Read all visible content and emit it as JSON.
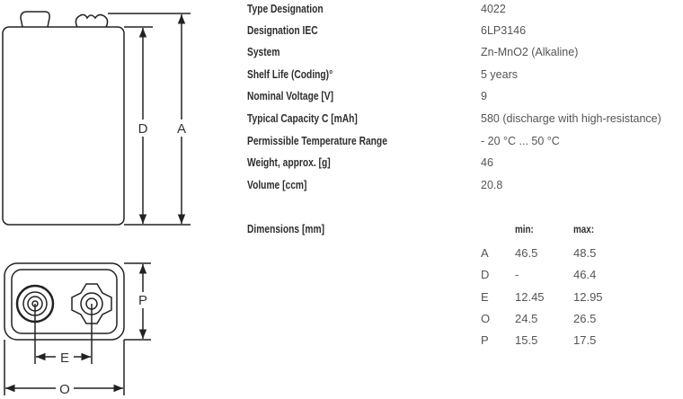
{
  "specs": [
    {
      "label": "Type Designation",
      "value": "4022"
    },
    {
      "label": "Designation IEC",
      "value": "6LP3146"
    },
    {
      "label": "System",
      "value": "Zn-MnO2 (Alkaline)"
    },
    {
      "label": "Shelf Life (Coding)°",
      "value": "5 years"
    },
    {
      "label": "Nominal Voltage [V]",
      "value": "9"
    },
    {
      "label": "Typical Capacity C [mAh]",
      "value": "580 (discharge with high-resistance)"
    },
    {
      "label": "Permissible Temperature Range",
      "value": "- 20 °C ... 50 °C"
    },
    {
      "label": "Weight, approx. [g]",
      "value": "46"
    },
    {
      "label": "Volume [ccm]",
      "value": "20.8"
    }
  ],
  "dimensions": {
    "title": "Dimensions [mm]",
    "min_header": "min:",
    "max_header": "max:",
    "rows": [
      {
        "key": "A",
        "min": "46.5",
        "max": "48.5"
      },
      {
        "key": "D",
        "min": "-",
        "max": "46.4"
      },
      {
        "key": "E",
        "min": "12.45",
        "max": "12.95"
      },
      {
        "key": "O",
        "min": "24.5",
        "max": "26.5"
      },
      {
        "key": "P",
        "min": "15.5",
        "max": "17.5"
      }
    ]
  },
  "drawing": {
    "label_d": "D",
    "label_a": "A",
    "label_p": "P",
    "label_e": "E",
    "label_o": "O"
  }
}
